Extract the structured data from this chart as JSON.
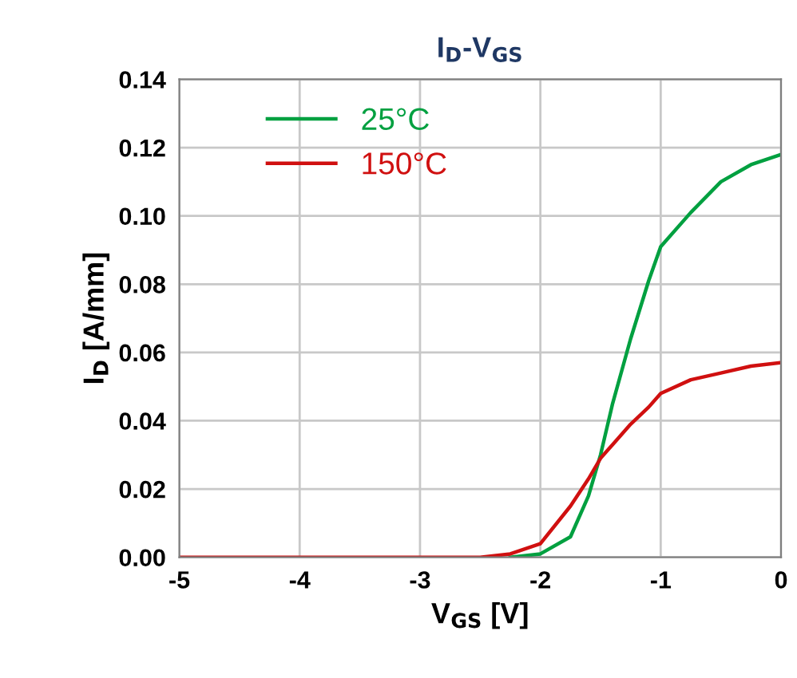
{
  "chart_data": {
    "type": "line",
    "title": "I$_{D}$-V$_{GS}$",
    "xlabel": "V$_{GS}$ [V]",
    "ylabel": "I$_{D}$ [A/mm]",
    "series": [
      {
        "name": "25°C",
        "color": "#00a040",
        "x": [
          -2.25,
          -2,
          -1.75,
          -1.6,
          -1.5,
          -1.4,
          -1.25,
          -1.1,
          -1,
          -0.75,
          -0.5,
          -0.25,
          0
        ],
        "values": [
          0,
          0.001,
          0.006,
          0.018,
          0.03,
          0.045,
          0.064,
          0.081,
          0.091,
          0.101,
          0.11,
          0.115,
          0.118
        ]
      },
      {
        "name": "150°C",
        "color": "#d01010",
        "x": [
          -5,
          -3,
          -2.5,
          -2.25,
          -2,
          -1.75,
          -1.6,
          -1.5,
          -1.4,
          -1.25,
          -1.1,
          -1,
          -0.75,
          -0.5,
          -0.25,
          0
        ],
        "values": [
          0,
          0,
          0,
          0.001,
          0.004,
          0.015,
          0.023,
          0.029,
          0.033,
          0.039,
          0.044,
          0.048,
          0.052,
          0.054,
          0.056,
          0.057
        ]
      }
    ],
    "xlim": [
      -5,
      0
    ],
    "xticks": [
      -5,
      -4,
      -3,
      -2,
      -1,
      0
    ],
    "ylim": [
      0,
      0.14
    ],
    "yticks": [
      {
        "value": 0,
        "label": "0.00"
      },
      0.02,
      0.04,
      0.06,
      0.08,
      {
        "value": 0.1,
        "label": "0.10"
      },
      0.12,
      0.14
    ],
    "grid": true,
    "legend": "top left",
    "marker": "none",
    "line_style": "solid"
  }
}
